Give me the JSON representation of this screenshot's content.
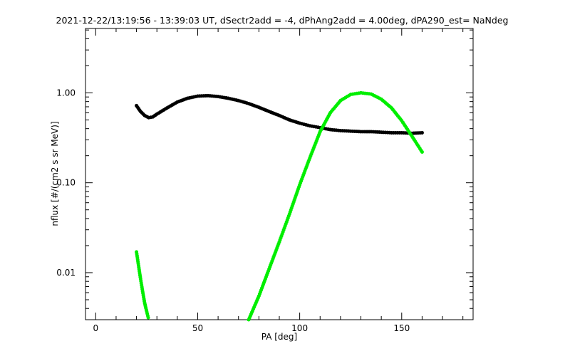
{
  "chart_data": {
    "type": "scatter",
    "title": "2021-12-22/13:19:56 - 13:39:03 UT, dSectr2add = -4, dPhAng2add = 4.00deg, dPA290_est=   NaNdeg",
    "xlabel": "PA [deg]",
    "ylabel": "nflux [#/(cm2 s sr MeV)]",
    "xlim": [
      -5,
      185
    ],
    "ylim": [
      0.003,
      5.2
    ],
    "yscale": "log",
    "x_ticks": [
      0,
      50,
      100,
      150
    ],
    "x_tick_labels": [
      "0",
      "50",
      "100",
      "150"
    ],
    "y_ticks": [
      0.01,
      0.1,
      1.0
    ],
    "y_tick_labels": [
      "0.01",
      "0.10",
      "1.00"
    ],
    "grid": false,
    "series": [
      {
        "color": "#000000",
        "x": [
          20,
          22,
          24,
          26,
          28,
          30,
          35,
          40,
          45,
          50,
          55,
          60,
          65,
          70,
          75,
          80,
          85,
          90,
          95,
          100,
          105,
          110,
          115,
          120,
          125,
          130,
          135,
          140,
          145,
          150,
          155,
          160
        ],
        "y": [
          0.72,
          0.62,
          0.56,
          0.53,
          0.54,
          0.58,
          0.68,
          0.79,
          0.87,
          0.92,
          0.93,
          0.91,
          0.87,
          0.82,
          0.76,
          0.69,
          0.62,
          0.56,
          0.5,
          0.46,
          0.43,
          0.41,
          0.39,
          0.38,
          0.375,
          0.37,
          0.37,
          0.365,
          0.36,
          0.36,
          0.355,
          0.36
        ]
      },
      {
        "color": "#00ee00",
        "x": [
          20,
          21,
          22,
          23,
          24,
          25,
          26,
          75,
          80,
          85,
          90,
          95,
          100,
          105,
          110,
          115,
          120,
          125,
          130,
          135,
          140,
          145,
          150,
          155,
          160
        ],
        "y": [
          0.017,
          0.012,
          0.0085,
          0.0062,
          0.0046,
          0.0037,
          0.003,
          0.003,
          0.0055,
          0.011,
          0.022,
          0.045,
          0.095,
          0.19,
          0.37,
          0.6,
          0.82,
          0.96,
          1.0,
          0.97,
          0.85,
          0.68,
          0.49,
          0.33,
          0.22
        ]
      }
    ]
  }
}
